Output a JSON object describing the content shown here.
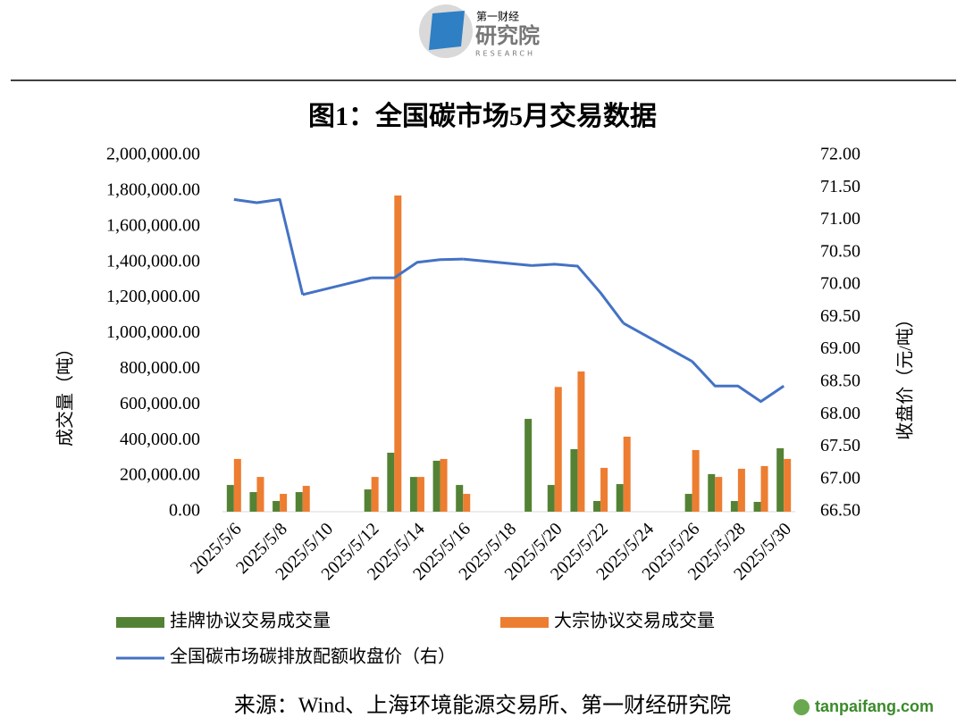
{
  "header": {
    "logo_top": "第一财经",
    "logo_main": "研究院",
    "logo_sub": "RESEARCH"
  },
  "chart_data": {
    "type": "bar",
    "title": "图1：全国碳市场5月交易数据",
    "ylabel": "成交量（吨）",
    "y2label": "收盘价（元/吨）",
    "categories": [
      "2025/5/6",
      null,
      "2025/5/8",
      null,
      "2025/5/10",
      null,
      "2025/5/12",
      null,
      "2025/5/14",
      null,
      "2025/5/16",
      null,
      "2025/5/18",
      null,
      "2025/5/20",
      null,
      "2025/5/22",
      null,
      "2025/5/24",
      null,
      "2025/5/26",
      null,
      "2025/5/28",
      null,
      "2025/5/30"
    ],
    "series": [
      {
        "name": "挂牌协议交易成交量",
        "color": "#548235",
        "type": "bar",
        "values": [
          150000,
          110000,
          60000,
          110000,
          null,
          null,
          125000,
          331000,
          195000,
          286000,
          150000,
          null,
          null,
          521000,
          150000,
          351000,
          60000,
          155000,
          null,
          null,
          100000,
          211000,
          60000,
          55000,
          356000
        ]
      },
      {
        "name": "大宗协议交易成交量",
        "color": "#ed7d31",
        "type": "bar",
        "values": [
          296000,
          195000,
          100000,
          145000,
          null,
          null,
          195000,
          1775000,
          195000,
          296000,
          100000,
          null,
          null,
          null,
          700000,
          787000,
          246000,
          421000,
          null,
          null,
          346000,
          195000,
          241000,
          256000,
          296000
        ]
      },
      {
        "name": "全国碳市场碳排放配额收盘价（右）",
        "color": "#4472c4",
        "type": "line",
        "axis": "y2",
        "values": [
          71.32,
          71.27,
          71.32,
          69.85,
          null,
          null,
          70.11,
          70.11,
          70.35,
          70.39,
          70.4,
          null,
          null,
          70.3,
          70.32,
          70.29,
          69.88,
          69.41,
          null,
          null,
          68.82,
          68.44,
          68.44,
          68.2,
          68.44
        ]
      }
    ],
    "ylim": [
      0,
      2000000
    ],
    "yticks": [
      {
        "value": 0,
        "label": "0.00"
      },
      {
        "value": 200000,
        "label": "200,000.00"
      },
      {
        "value": 400000,
        "label": "400,000.00"
      },
      {
        "value": 600000,
        "label": "600,000.00"
      },
      {
        "value": 800000,
        "label": "800,000.00"
      },
      {
        "value": 1000000,
        "label": "1,000,000.00"
      },
      {
        "value": 1200000,
        "label": "1,200,000.00"
      },
      {
        "value": 1400000,
        "label": "1,400,000.00"
      },
      {
        "value": 1600000,
        "label": "1,600,000.00"
      },
      {
        "value": 1800000,
        "label": "1,800,000.00"
      },
      {
        "value": 2000000,
        "label": "2,000,000.00"
      }
    ],
    "y2lim": [
      66.5,
      72
    ],
    "y2ticks": [
      {
        "value": 66.5,
        "label": "66.50"
      },
      {
        "value": 67,
        "label": "67.00"
      },
      {
        "value": 67.5,
        "label": "67.50"
      },
      {
        "value": 68,
        "label": "68.00"
      },
      {
        "value": 68.5,
        "label": "68.50"
      },
      {
        "value": 69,
        "label": "69.00"
      },
      {
        "value": 69.5,
        "label": "69.50"
      },
      {
        "value": 70,
        "label": "70.00"
      },
      {
        "value": 70.5,
        "label": "70.50"
      },
      {
        "value": 71,
        "label": "71.00"
      },
      {
        "value": 71.5,
        "label": "71.50"
      },
      {
        "value": 72,
        "label": "72.00"
      }
    ],
    "grid": false,
    "legend": "bottom"
  },
  "source": "来源：Wind、上海环境能源交易所、第一财经研究院",
  "watermark": "tanpaifang.com"
}
